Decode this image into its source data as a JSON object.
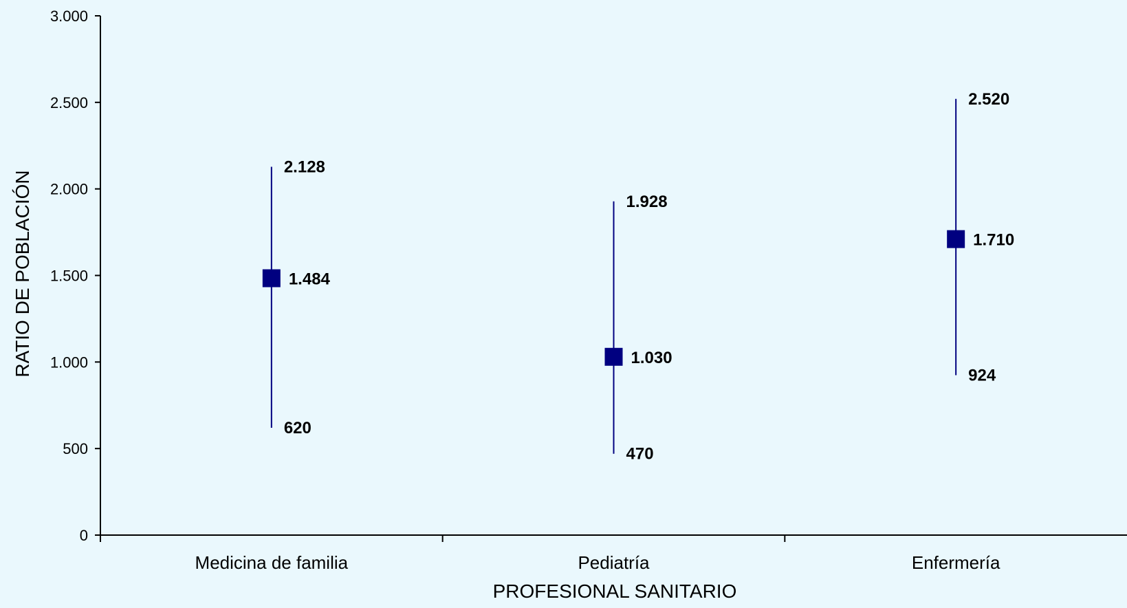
{
  "chart_data": {
    "type": "range",
    "xlabel": "PROFESIONAL SANITARIO",
    "ylabel": "RATIO DE POBLACIÓN",
    "ylim": [
      0,
      3000
    ],
    "yticks": [
      0,
      500,
      1000,
      1500,
      2000,
      2500,
      3000
    ],
    "ytick_labels": [
      "0",
      "500",
      "1.000",
      "1.500",
      "2.000",
      "2.500",
      "3.000"
    ],
    "categories": [
      "Medicina de familia",
      "Pediatría",
      "Enfermería"
    ],
    "mid": [
      1484,
      1030,
      1710
    ],
    "high": [
      2128,
      1928,
      2520
    ],
    "low": [
      620,
      470,
      924
    ],
    "mid_labels": [
      "1.484",
      "1.030",
      "1.710"
    ],
    "high_labels": [
      "2.128",
      "1.928",
      "2.520"
    ],
    "low_labels": [
      "620",
      "470",
      "924"
    ],
    "colors": {
      "marker": "#000080",
      "line": "#000080",
      "axis": "#000000",
      "background": "#eaf8fd"
    },
    "grid": false,
    "legend": "none"
  }
}
